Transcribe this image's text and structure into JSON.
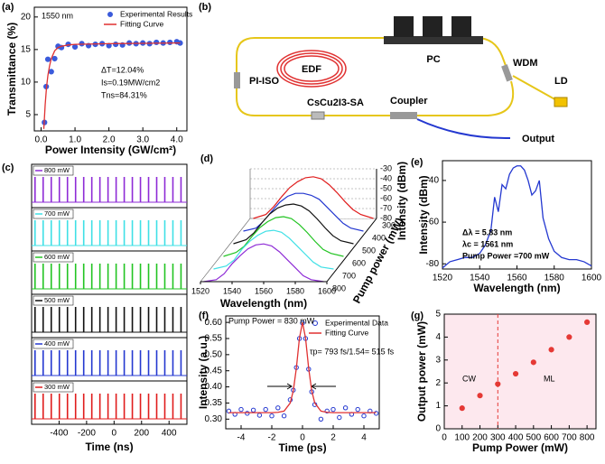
{
  "chart_data": [
    {
      "panel": "(a)",
      "type": "scatter",
      "xlabel": "Power Intensity (GW/cm²)",
      "ylabel": "Transmittance (%)",
      "xlim": [
        -0.2,
        4.3
      ],
      "xticks": [
        {
          "value": 0,
          "label": "0.0"
        },
        {
          "value": 1,
          "label": "1.0"
        },
        {
          "value": 2,
          "label": "2.0"
        },
        {
          "value": 3,
          "label": "3.0"
        },
        {
          "value": 4,
          "label": "4.0"
        }
      ],
      "ylim": [
        2.5,
        21.5
      ],
      "yticks": [
        5,
        10,
        15,
        20
      ],
      "legend": "top-right",
      "annotations": [
        "1550 nm",
        "ΔT=12.04%",
        "Is=0.19MW/cm2",
        "Tns=84.31%"
      ],
      "series": [
        {
          "name": "Experimental Results",
          "color": "#3b5bdb",
          "style": "markers",
          "x": [
            0.1,
            0.15,
            0.2,
            0.3,
            0.4,
            0.5,
            0.6,
            0.8,
            1.0,
            1.2,
            1.4,
            1.6,
            1.8,
            2.0,
            2.2,
            2.4,
            2.6,
            2.8,
            3.0,
            3.2,
            3.4,
            3.6,
            3.8,
            4.0,
            4.1
          ],
          "values": [
            3.8,
            9.3,
            13.5,
            11.6,
            13.6,
            15.5,
            15.3,
            15.8,
            15.4,
            15.9,
            15.6,
            15.8,
            15.9,
            15.6,
            15.8,
            15.7,
            16.0,
            15.9,
            16.0,
            15.9,
            16.1,
            16.0,
            16.1,
            16.2,
            16.0
          ]
        },
        {
          "name": "Fitting Curve",
          "color": "#e03131",
          "style": "line",
          "x": [
            0.08,
            0.12,
            0.16,
            0.2,
            0.25,
            0.3,
            0.4,
            0.5,
            0.6,
            0.8,
            1.0,
            1.5,
            2.0,
            3.0,
            4.0,
            4.1
          ],
          "values": [
            2.8,
            6.5,
            9.2,
            11.0,
            12.5,
            13.6,
            14.8,
            15.3,
            15.5,
            15.7,
            15.8,
            15.85,
            15.9,
            15.95,
            16.0,
            16.0
          ]
        }
      ]
    },
    {
      "panel": "(c)",
      "type": "pulse_train",
      "xlabel": "Time (ns)",
      "xlim": [
        -600,
        530
      ],
      "xticks": [
        -400,
        -200,
        0,
        200,
        400
      ],
      "x": [
        -575,
        -516,
        -457,
        -398,
        -339,
        -280,
        -221,
        -162,
        -103,
        -44,
        15,
        74,
        133,
        192,
        251,
        310,
        369,
        428,
        487
      ],
      "series": [
        {
          "name": "800 mW",
          "color": "#8e2bd6"
        },
        {
          "name": "700 mW",
          "color": "#3fe0e6"
        },
        {
          "name": "600 mW",
          "color": "#22c422"
        },
        {
          "name": "500 mW",
          "color": "#111111"
        },
        {
          "name": "400 mW",
          "color": "#2438d0"
        },
        {
          "name": "300 mW",
          "color": "#e01c1c"
        }
      ]
    },
    {
      "panel": "(d)",
      "type": "waterfall",
      "xlabel": "Wavelength (nm)",
      "ylabel": "Intensity (dBm)",
      "zlabel": "Pump power (mW)",
      "xlim": [
        1520,
        1600
      ],
      "xticks": [
        1520,
        1540,
        1560,
        1580,
        1600
      ],
      "ylim": [
        -80,
        -30
      ],
      "yticks": [
        -30,
        -40,
        -50,
        -60,
        -70,
        -80
      ],
      "x": [
        1522,
        1530,
        1535,
        1540,
        1545,
        1550,
        1555,
        1560,
        1565,
        1570,
        1575,
        1580,
        1585,
        1590,
        1598
      ],
      "series": [
        {
          "name": "800",
          "color": "#8e2bd6",
          "values": [
            -80,
            -78,
            -72,
            -62,
            -54,
            -47,
            -43,
            -42,
            -44,
            -50,
            -58,
            -66,
            -74,
            -78,
            -80
          ]
        },
        {
          "name": "700",
          "color": "#3fe0e6",
          "values": [
            -80,
            -77,
            -71,
            -60,
            -52,
            -46,
            -42,
            -41,
            -43,
            -49,
            -57,
            -65,
            -73,
            -78,
            -80
          ]
        },
        {
          "name": "600",
          "color": "#22c422",
          "values": [
            -80,
            -76,
            -70,
            -60,
            -51,
            -45,
            -41,
            -40,
            -42,
            -48,
            -56,
            -65,
            -73,
            -77,
            -80
          ]
        },
        {
          "name": "500",
          "color": "#111111",
          "values": [
            -80,
            -76,
            -69,
            -59,
            -50,
            -44,
            -41,
            -40,
            -42,
            -47,
            -55,
            -64,
            -72,
            -77,
            -80
          ]
        },
        {
          "name": "400",
          "color": "#2438d0",
          "values": [
            -80,
            -77,
            -70,
            -60,
            -51,
            -45,
            -42,
            -42,
            -44,
            -48,
            -56,
            -64,
            -72,
            -77,
            -80
          ]
        },
        {
          "name": "300",
          "color": "#e01c1c",
          "values": [
            -80,
            -76,
            -68,
            -58,
            -49,
            -43,
            -39,
            -38,
            -40,
            -46,
            -54,
            -63,
            -71,
            -76,
            -80
          ]
        }
      ]
    },
    {
      "panel": "(e)",
      "type": "line",
      "xlabel": "Wavelength (nm)",
      "ylabel": "Intensity (dBm)",
      "color": "#2438d0",
      "xlim": [
        1520,
        1600
      ],
      "xticks": [
        1520,
        1540,
        1560,
        1580,
        1600
      ],
      "ylim": [
        -82.5,
        -30.5
      ],
      "yticks": [
        -40,
        -60,
        -80
      ],
      "annotations": [
        "Δλ = 5.83 nm",
        "λc = 1561 nm",
        "Pump Power =700 mW"
      ],
      "annotation_color": "#e02020",
      "x": [
        1520,
        1524,
        1528,
        1532,
        1536,
        1540,
        1543,
        1546,
        1548,
        1550,
        1552,
        1554,
        1556,
        1558,
        1560,
        1562,
        1564,
        1566,
        1568,
        1570,
        1572,
        1574,
        1577,
        1580,
        1584,
        1588,
        1592,
        1596,
        1600
      ],
      "values": [
        -82,
        -79,
        -78,
        -77,
        -77,
        -75,
        -71,
        -64,
        -48,
        -55,
        -42,
        -44,
        -37,
        -34,
        -33,
        -33,
        -35,
        -40,
        -47,
        -45,
        -40,
        -58,
        -68,
        -74,
        -77,
        -78,
        -78,
        -79,
        -81
      ]
    },
    {
      "panel": "(f)",
      "type": "line",
      "xlabel": "Time (ps)",
      "ylabel": "Intensity (a.u.)",
      "legend": "top-right",
      "xlim": [
        -5,
        5
      ],
      "xticks": [
        -4,
        -2,
        0,
        2,
        4
      ],
      "ylim": [
        0.27,
        0.62
      ],
      "yticks": [
        {
          "value": 0.3,
          "label": "0.30"
        },
        {
          "value": 0.35,
          "label": "0.35"
        },
        {
          "value": 0.4,
          "label": "0.40"
        },
        {
          "value": 0.45,
          "label": "0.45"
        },
        {
          "value": 0.5,
          "label": "0.50"
        },
        {
          "value": 0.55,
          "label": "0.55"
        },
        {
          "value": 0.6,
          "label": "0.60"
        }
      ],
      "annotations": [
        "Pump Power = 830 mW",
        "τp= 793 fs/1.54= 515 fs"
      ],
      "x": [
        -4.8,
        -4.4,
        -4.0,
        -3.6,
        -3.2,
        -2.8,
        -2.4,
        -2.0,
        -1.6,
        -1.2,
        -0.8,
        -0.6,
        -0.4,
        -0.2,
        0,
        0.2,
        0.4,
        0.6,
        0.8,
        1.2,
        1.6,
        2.0,
        2.4,
        2.8,
        3.2,
        3.6,
        4.0,
        4.4,
        4.8
      ],
      "series": [
        {
          "name": "Experimental Data",
          "color": "#2438d0",
          "style": "open_markers",
          "values": [
            0.325,
            0.315,
            0.33,
            0.318,
            0.328,
            0.312,
            0.33,
            0.31,
            0.335,
            0.31,
            0.36,
            0.39,
            0.46,
            0.55,
            0.598,
            0.55,
            0.455,
            0.385,
            0.345,
            0.3,
            0.325,
            0.33,
            0.305,
            0.335,
            0.315,
            0.33,
            0.31,
            0.325,
            0.318
          ]
        },
        {
          "name": "Fitting Curve",
          "color": "#e03131",
          "style": "line",
          "values": [
            0.32,
            0.32,
            0.32,
            0.32,
            0.32,
            0.32,
            0.32,
            0.32,
            0.321,
            0.325,
            0.35,
            0.388,
            0.458,
            0.551,
            0.6,
            0.551,
            0.458,
            0.388,
            0.35,
            0.325,
            0.321,
            0.32,
            0.32,
            0.32,
            0.32,
            0.32,
            0.32,
            0.32,
            0.32
          ]
        }
      ]
    },
    {
      "panel": "(g)",
      "type": "scatter",
      "xlabel": "Pump Power (mW)",
      "ylabel": "Output power (mW)",
      "color": "#e53935",
      "background": "#fde8ee",
      "xlim": [
        0,
        850
      ],
      "xticks": [
        0,
        100,
        200,
        300,
        400,
        500,
        600,
        700,
        800
      ],
      "ylim": [
        0,
        5
      ],
      "yticks": [
        0,
        1,
        2,
        3,
        4,
        5
      ],
      "divider": 300,
      "annotations": [
        "CW",
        "ML"
      ],
      "x": [
        100,
        200,
        300,
        400,
        500,
        600,
        700,
        800
      ],
      "values": [
        0.9,
        1.45,
        1.95,
        2.4,
        2.9,
        3.45,
        4.0,
        4.65
      ]
    }
  ],
  "diagram": {
    "panel": "(b)",
    "edf": "EDF",
    "pc": "PC",
    "wdm": "WDM",
    "ld": "LD",
    "iso": "PI-ISO",
    "sa": "CsCu2I3-SA",
    "coupler": "Coupler",
    "output": "Output"
  }
}
